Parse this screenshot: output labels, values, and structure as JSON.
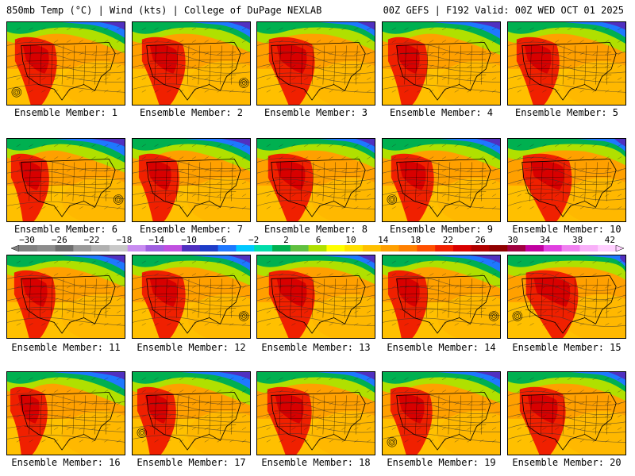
{
  "header": {
    "left": "850mb Temp (°C) | Wind (kts) | College of DuPage NEXLAB",
    "right": "00Z GEFS | F192 Valid: 00Z WED OCT 01 2025"
  },
  "colorbar": {
    "labels": [
      "−30",
      "−26",
      "−22",
      "−18",
      "−14",
      "−10",
      "−6",
      "−2",
      "2",
      "6",
      "10",
      "14",
      "18",
      "22",
      "26",
      "30",
      "34",
      "38",
      "42"
    ],
    "colors": [
      "#808080",
      "#8c8c8c",
      "#6e6e6e",
      "#9a9a9a",
      "#b0b0b0",
      "#c8c8c8",
      "#c88cf0",
      "#a060e0",
      "#c050e0",
      "#5030c0",
      "#1e3cc8",
      "#1e78ff",
      "#00c8ff",
      "#00ddaa",
      "#00b050",
      "#60c040",
      "#b0e000",
      "#ffff00",
      "#ffe000",
      "#ffc000",
      "#ffa000",
      "#ff8000",
      "#ff5000",
      "#f02000",
      "#d80000",
      "#b00000",
      "#900000",
      "#a00040",
      "#c000a0",
      "#e040e0",
      "#f080f0",
      "#f8b0f8",
      "#ffd0ff"
    ]
  },
  "members": [
    {
      "label": "Ensemble Member: 1"
    },
    {
      "label": "Ensemble Member: 2"
    },
    {
      "label": "Ensemble Member: 3"
    },
    {
      "label": "Ensemble Member: 4"
    },
    {
      "label": "Ensemble Member: 5"
    },
    {
      "label": "Ensemble Member: 6"
    },
    {
      "label": "Ensemble Member: 7"
    },
    {
      "label": "Ensemble Member: 8"
    },
    {
      "label": "Ensemble Member: 9"
    },
    {
      "label": "Ensemble Member: 10"
    },
    {
      "label": "Ensemble Member: 11"
    },
    {
      "label": "Ensemble Member: 12"
    },
    {
      "label": "Ensemble Member: 13"
    },
    {
      "label": "Ensemble Member: 14"
    },
    {
      "label": "Ensemble Member: 15"
    },
    {
      "label": "Ensemble Member: 16"
    },
    {
      "label": "Ensemble Member: 17"
    },
    {
      "label": "Ensemble Member: 18"
    },
    {
      "label": "Ensemble Member: 19"
    },
    {
      "label": "Ensemble Member: 20"
    }
  ]
}
